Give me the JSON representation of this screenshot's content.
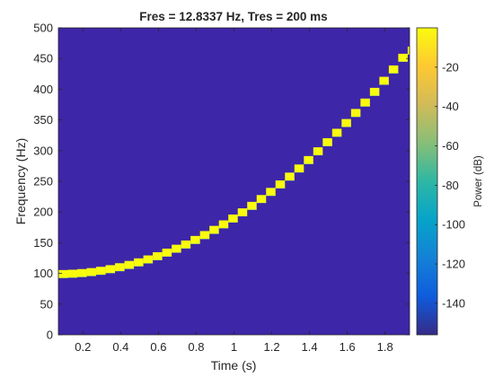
{
  "chart_data": {
    "type": "heatmap",
    "title": "Fres = 12.8337 Hz, Tres = 200 ms",
    "xlabel": "Time (s)",
    "ylabel": "Frequency (Hz)",
    "colorbar_label": "Power (dB)",
    "xlim": [
      0.07,
      1.93
    ],
    "ylim": [
      0,
      500
    ],
    "xticks": [
      0.2,
      0.4,
      0.6,
      0.8,
      1,
      1.2,
      1.4,
      1.6,
      1.8
    ],
    "xtick_labels": [
      "0.2",
      "0.4",
      "0.6",
      "0.8",
      "1",
      "1.2",
      "1.4",
      "1.6",
      "1.8"
    ],
    "yticks": [
      0,
      50,
      100,
      150,
      200,
      250,
      300,
      350,
      400,
      450,
      500
    ],
    "ytick_labels": [
      "0",
      "50",
      "100",
      "150",
      "200",
      "250",
      "300",
      "350",
      "400",
      "450",
      "500"
    ],
    "colorbar_range": [
      -156,
      0
    ],
    "colorbar_ticks": [
      -140,
      -120,
      -100,
      -80,
      -60,
      -40,
      -20
    ],
    "colorbar_tick_labels": [
      "-140",
      "-120",
      "-100",
      "-80",
      "-60",
      "-40",
      "-20"
    ],
    "background_power_db": -156,
    "colormap": "parula",
    "time_step_s": 0.05,
    "freq_bin_hz": 12.8337,
    "ridge": {
      "description_values": "Instantaneous frequency of the dominant (max power) component",
      "t_start_s": 0.07,
      "t_end_s": 1.93,
      "f_start_hz": 99,
      "f_end_hz": 465,
      "power_db": 0,
      "curve": "quadratic"
    }
  },
  "colors": {
    "axes_bg": "#3e26a8",
    "ridge": "#f9fb0e",
    "edge": "#26bce1",
    "text": "#262626"
  }
}
